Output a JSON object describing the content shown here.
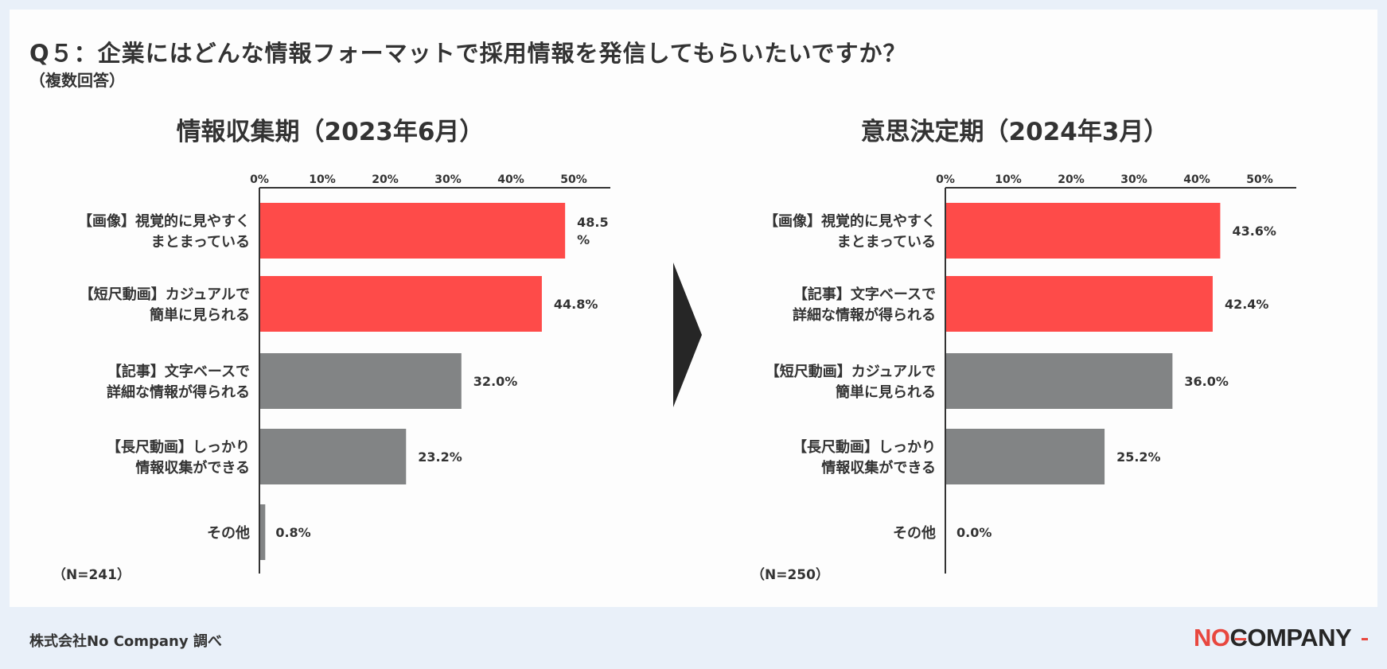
{
  "title": "Q５：企業にはどんな情報フォーマットで採用情報を発信してもらいたいですか？",
  "subtitle": "（複数回答）",
  "footer_note": "株式会社No Company 調べ",
  "logo": {
    "no": "NO",
    "company": "COMPANY"
  },
  "colors": {
    "highlight": "#fe4b49",
    "other": "#828485",
    "arrow": "#262626"
  },
  "chart_data": [
    {
      "type": "bar",
      "orientation": "horizontal",
      "title": "情報収集期（2023年6月）",
      "n_label": "（N=241）",
      "xlim": [
        0,
        55
      ],
      "ticks": [
        "0%",
        "10%",
        "20%",
        "30%",
        "40%",
        "50%"
      ],
      "tick_values": [
        0,
        10,
        20,
        30,
        40,
        50
      ],
      "categories": [
        [
          "【画像】視覚的に見やすく",
          "まとまっている"
        ],
        [
          "【短尺動画】カジュアルで",
          "簡単に見られる"
        ],
        [
          "【記事】文字ベースで",
          "詳細な情報が得られる"
        ],
        [
          "【長尺動画】しっかり",
          "情報収集ができる"
        ],
        [
          "その他"
        ]
      ],
      "values": [
        48.5,
        44.8,
        32.0,
        23.2,
        0.8
      ],
      "value_labels": [
        [
          "48.5",
          "%"
        ],
        [
          "44.8%"
        ],
        [
          "32.0%"
        ],
        [
          "23.2%"
        ],
        [
          "0.8%"
        ]
      ],
      "highlight": [
        true,
        true,
        false,
        false,
        false
      ]
    },
    {
      "type": "bar",
      "orientation": "horizontal",
      "title": "意思決定期（2024年3月）",
      "n_label": "（N=250）",
      "xlim": [
        0,
        55
      ],
      "ticks": [
        "0%",
        "10%",
        "20%",
        "30%",
        "40%",
        "50%"
      ],
      "tick_values": [
        0,
        10,
        20,
        30,
        40,
        50
      ],
      "categories": [
        [
          "【画像】視覚的に見やすく",
          "まとまっている"
        ],
        [
          "【記事】文字ベースで",
          "詳細な情報が得られる"
        ],
        [
          "【短尺動画】カジュアルで",
          "簡単に見られる"
        ],
        [
          "【長尺動画】しっかり",
          "情報収集ができる"
        ],
        [
          "その他"
        ]
      ],
      "values": [
        43.6,
        42.4,
        36.0,
        25.2,
        0.0
      ],
      "value_labels": [
        [
          "43.6%"
        ],
        [
          "42.4%"
        ],
        [
          "36.0%"
        ],
        [
          "25.2%"
        ],
        [
          "0.0%"
        ]
      ],
      "highlight": [
        true,
        true,
        false,
        false,
        false
      ]
    }
  ]
}
